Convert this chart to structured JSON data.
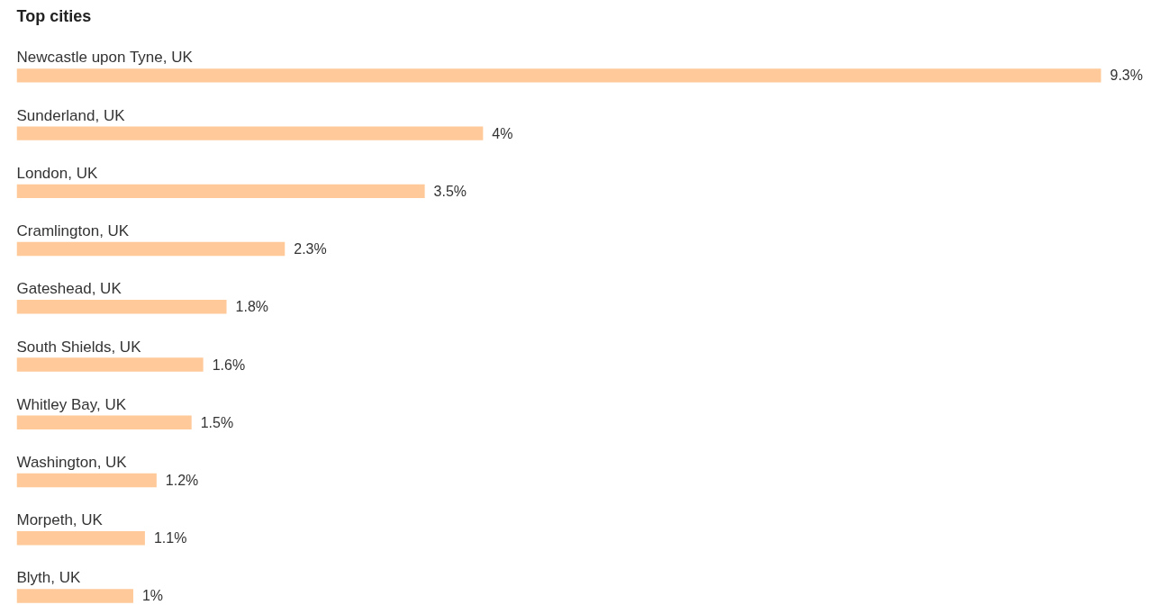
{
  "chart_data": {
    "type": "bar",
    "orientation": "horizontal",
    "title": "Top cities",
    "categories": [
      "Newcastle upon Tyne, UK",
      "Sunderland, UK",
      "London, UK",
      "Cramlington, UK",
      "Gateshead, UK",
      "South Shields, UK",
      "Whitley Bay, UK",
      "Washington, UK",
      "Morpeth, UK",
      "Blyth, UK"
    ],
    "values": [
      9.3,
      4,
      3.5,
      2.3,
      1.8,
      1.6,
      1.5,
      1.2,
      1.1,
      1
    ],
    "value_labels": [
      "9.3%",
      "4%",
      "3.5%",
      "2.3%",
      "1.8%",
      "1.6%",
      "1.5%",
      "1.2%",
      "1.1%",
      "1%"
    ],
    "color": "#ffc999"
  }
}
